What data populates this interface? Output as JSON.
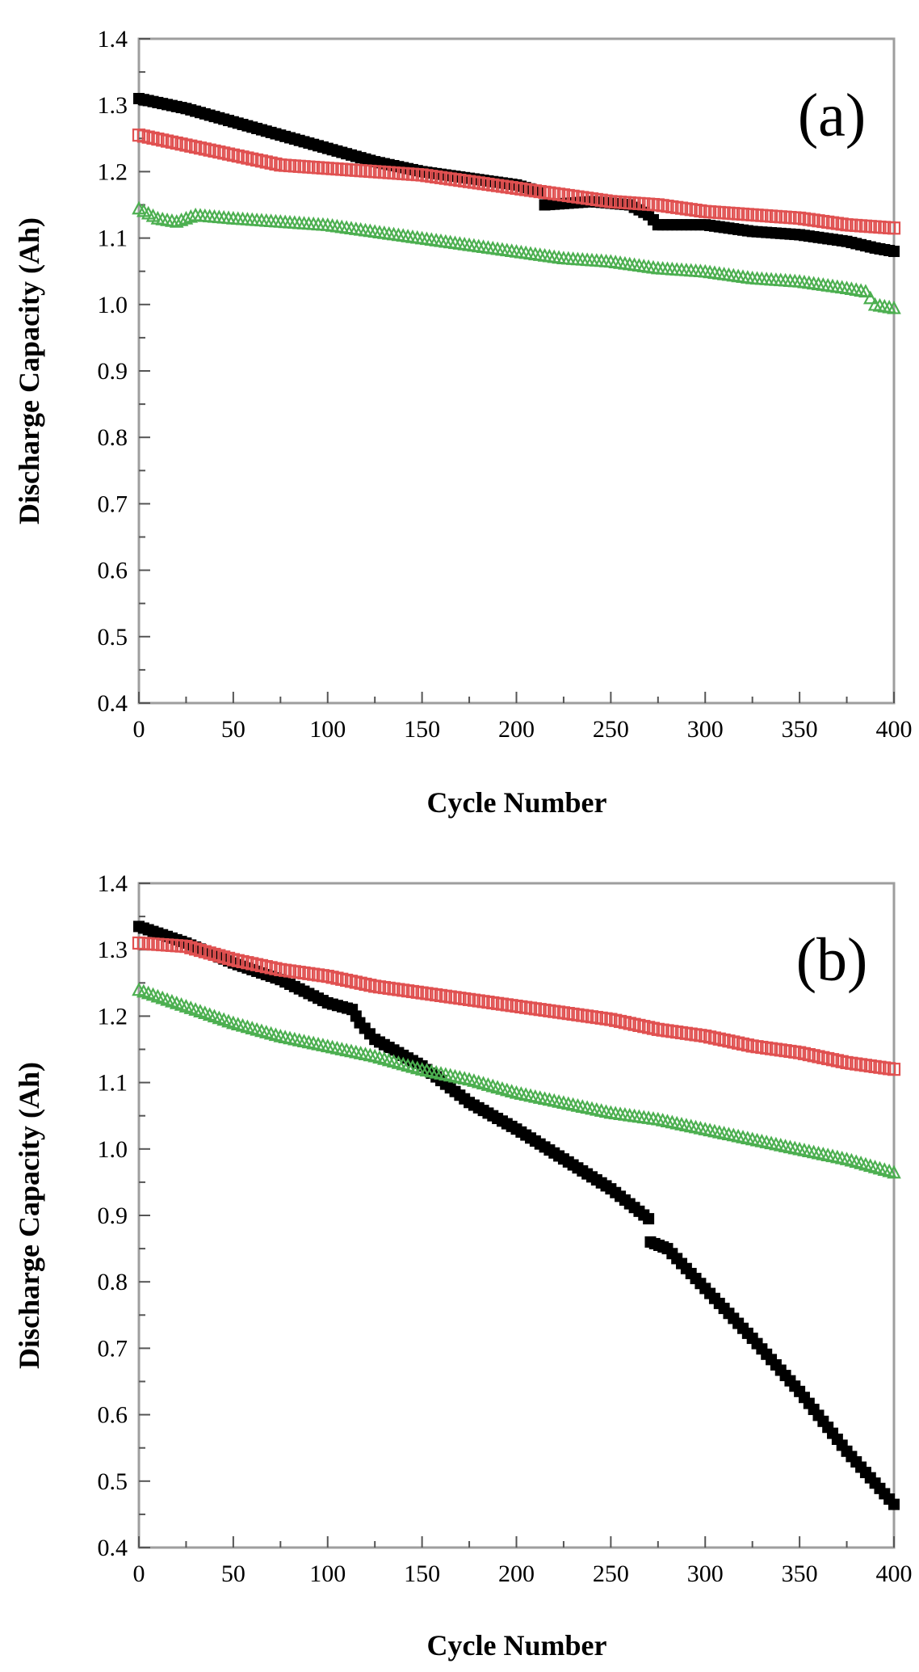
{
  "chart_data": [
    {
      "type": "scatter",
      "panel_label": "(a)",
      "xlabel": "Cycle Number",
      "ylabel": "Discharge Capacity (Ah)",
      "xlim": [
        0,
        400
      ],
      "ylim": [
        0.4,
        1.4
      ],
      "xticks": [
        0,
        50,
        100,
        150,
        200,
        250,
        300,
        350,
        400
      ],
      "yticks": [
        0.4,
        0.5,
        0.6,
        0.7,
        0.8,
        0.9,
        1.0,
        1.1,
        1.2,
        1.3,
        1.4
      ],
      "grid": false,
      "series": [
        {
          "name": "black",
          "marker": "square-filled",
          "color": "#000000",
          "points": [
            [
              0,
              1.31
            ],
            [
              25,
              1.295
            ],
            [
              50,
              1.275
            ],
            [
              75,
              1.255
            ],
            [
              100,
              1.235
            ],
            [
              125,
              1.215
            ],
            [
              150,
              1.2
            ],
            [
              175,
              1.19
            ],
            [
              200,
              1.18
            ],
            [
              212,
              1.17
            ],
            [
              215,
              1.15
            ],
            [
              240,
              1.155
            ],
            [
              260,
              1.15
            ],
            [
              270,
              1.135
            ],
            [
              275,
              1.12
            ],
            [
              300,
              1.12
            ],
            [
              325,
              1.11
            ],
            [
              350,
              1.105
            ],
            [
              375,
              1.095
            ],
            [
              390,
              1.085
            ],
            [
              400,
              1.08
            ]
          ]
        },
        {
          "name": "red",
          "marker": "square-open",
          "color": "#e05050",
          "points": [
            [
              0,
              1.255
            ],
            [
              25,
              1.24
            ],
            [
              50,
              1.225
            ],
            [
              75,
              1.21
            ],
            [
              100,
              1.205
            ],
            [
              125,
              1.2
            ],
            [
              150,
              1.195
            ],
            [
              175,
              1.185
            ],
            [
              200,
              1.175
            ],
            [
              225,
              1.165
            ],
            [
              250,
              1.155
            ],
            [
              275,
              1.15
            ],
            [
              300,
              1.14
            ],
            [
              325,
              1.135
            ],
            [
              350,
              1.13
            ],
            [
              375,
              1.12
            ],
            [
              400,
              1.115
            ]
          ]
        },
        {
          "name": "green",
          "marker": "triangle-open",
          "color": "#4caf50",
          "points": [
            [
              0,
              1.145
            ],
            [
              10,
              1.13
            ],
            [
              20,
              1.125
            ],
            [
              30,
              1.135
            ],
            [
              50,
              1.13
            ],
            [
              75,
              1.125
            ],
            [
              100,
              1.12
            ],
            [
              125,
              1.11
            ],
            [
              150,
              1.1
            ],
            [
              175,
              1.09
            ],
            [
              200,
              1.08
            ],
            [
              225,
              1.07
            ],
            [
              250,
              1.065
            ],
            [
              275,
              1.055
            ],
            [
              300,
              1.05
            ],
            [
              325,
              1.04
            ],
            [
              350,
              1.035
            ],
            [
              375,
              1.025
            ],
            [
              385,
              1.02
            ],
            [
              390,
              1.0
            ],
            [
              400,
              0.995
            ]
          ]
        }
      ]
    },
    {
      "type": "scatter",
      "panel_label": "(b)",
      "xlabel": "Cycle Number",
      "ylabel": "Discharge Capacity (Ah)",
      "xlim": [
        0,
        400
      ],
      "ylim": [
        0.4,
        1.4
      ],
      "xticks": [
        0,
        50,
        100,
        150,
        200,
        250,
        300,
        350,
        400
      ],
      "yticks": [
        0.4,
        0.5,
        0.6,
        0.7,
        0.8,
        0.9,
        1.0,
        1.1,
        1.2,
        1.3,
        1.4
      ],
      "grid": false,
      "series": [
        {
          "name": "black",
          "marker": "square-filled",
          "color": "#000000",
          "points": [
            [
              0,
              1.335
            ],
            [
              25,
              1.31
            ],
            [
              50,
              1.28
            ],
            [
              75,
              1.255
            ],
            [
              100,
              1.22
            ],
            [
              113,
              1.21
            ],
            [
              117,
              1.19
            ],
            [
              125,
              1.165
            ],
            [
              150,
              1.125
            ],
            [
              175,
              1.07
            ],
            [
              200,
              1.03
            ],
            [
              225,
              0.985
            ],
            [
              250,
              0.94
            ],
            [
              270,
              0.895
            ],
            [
              271,
              0.86
            ],
            [
              280,
              0.85
            ],
            [
              300,
              0.79
            ],
            [
              325,
              0.715
            ],
            [
              350,
              0.635
            ],
            [
              375,
              0.545
            ],
            [
              400,
              0.465
            ]
          ]
        },
        {
          "name": "red",
          "marker": "square-open",
          "color": "#e05050",
          "points": [
            [
              0,
              1.31
            ],
            [
              25,
              1.305
            ],
            [
              50,
              1.285
            ],
            [
              75,
              1.27
            ],
            [
              100,
              1.26
            ],
            [
              125,
              1.245
            ],
            [
              150,
              1.235
            ],
            [
              175,
              1.225
            ],
            [
              200,
              1.215
            ],
            [
              225,
              1.205
            ],
            [
              250,
              1.195
            ],
            [
              275,
              1.18
            ],
            [
              300,
              1.17
            ],
            [
              325,
              1.155
            ],
            [
              350,
              1.145
            ],
            [
              375,
              1.13
            ],
            [
              400,
              1.12
            ]
          ]
        },
        {
          "name": "green",
          "marker": "triangle-open",
          "color": "#4caf50",
          "points": [
            [
              0,
              1.24
            ],
            [
              25,
              1.215
            ],
            [
              50,
              1.19
            ],
            [
              75,
              1.17
            ],
            [
              100,
              1.155
            ],
            [
              125,
              1.14
            ],
            [
              150,
              1.12
            ],
            [
              175,
              1.105
            ],
            [
              200,
              1.085
            ],
            [
              225,
              1.07
            ],
            [
              250,
              1.055
            ],
            [
              275,
              1.045
            ],
            [
              300,
              1.03
            ],
            [
              325,
              1.015
            ],
            [
              350,
              1.0
            ],
            [
              375,
              0.985
            ],
            [
              400,
              0.965
            ]
          ]
        }
      ]
    }
  ]
}
